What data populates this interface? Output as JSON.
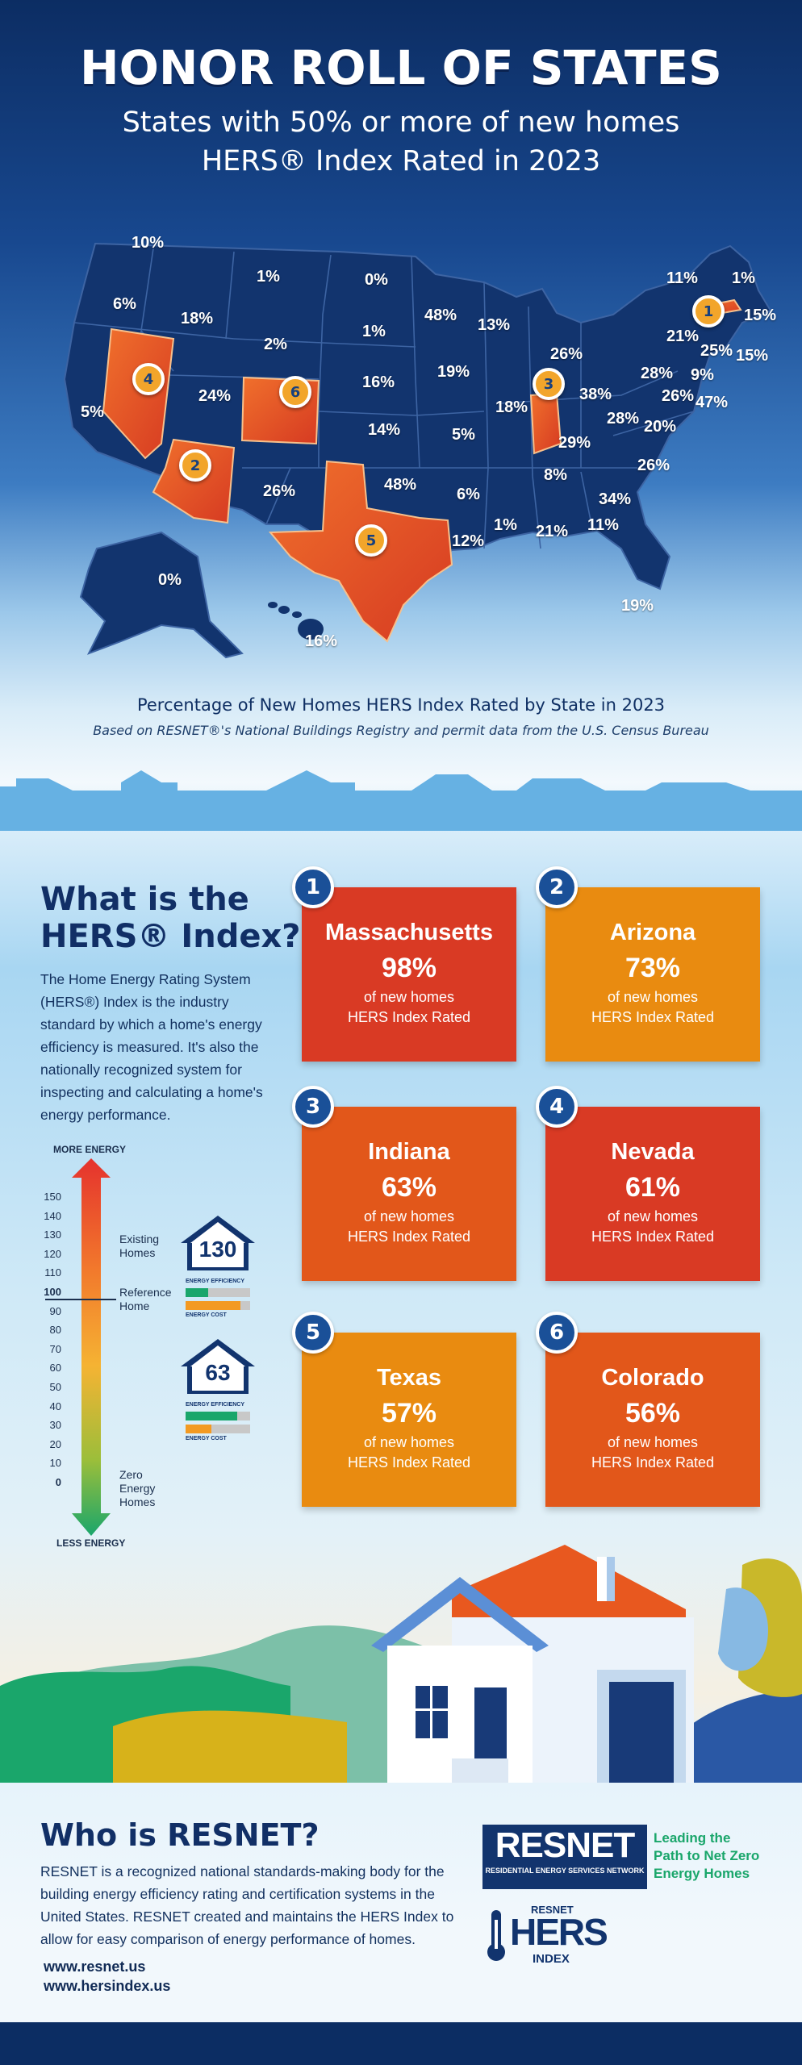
{
  "header": {
    "title": "HONOR ROLL OF STATES",
    "subtitle_line1": "States with 50% or more of new homes",
    "subtitle_line2": "HERS® Index Rated in 2023"
  },
  "map": {
    "caption": "Percentage of New Homes HERS Index Rated by State in 2023",
    "source": "Based on RESNET®'s National Buildings Registry and permit data from the U.S. Census Bureau",
    "labels": [
      "10%",
      "1%",
      "0%",
      "6%",
      "18%",
      "2%",
      "48%",
      "13%",
      "1%",
      "11%",
      "1%",
      "15%",
      "21%",
      "25%",
      "15%",
      "5%",
      "24%",
      "16%",
      "19%",
      "26%",
      "28%",
      "9%",
      "26%",
      "47%",
      "18%",
      "38%",
      "28%",
      "5%",
      "14%",
      "20%",
      "29%",
      "26%",
      "48%",
      "8%",
      "6%",
      "34%",
      "1%",
      "21%",
      "11%",
      "12%",
      "26%",
      "0%",
      "19%",
      "16%"
    ],
    "pins": [
      "1",
      "2",
      "3",
      "4",
      "5",
      "6"
    ]
  },
  "hers": {
    "title_line1": "What is the",
    "title_line2": "HERS® Index?",
    "description": "The Home Energy Rating System (HERS®) Index is the industry standard by which a home's energy efficiency is measured. It's also the nationally recognized system for inspecting and calculating a home's energy performance.",
    "scale": {
      "top_label": "MORE ENERGY",
      "bottom_label": "LESS ENERGY",
      "ticks": [
        "150",
        "140",
        "130",
        "120",
        "110",
        "100",
        "90",
        "80",
        "70",
        "60",
        "50",
        "40",
        "30",
        "20",
        "10",
        "0"
      ],
      "existing_homes": "Existing Homes",
      "reference_home": "Reference Home",
      "zero_energy": "Zero Energy Homes"
    },
    "house_examples": [
      {
        "score": "130",
        "efficiency_label": "ENERGY EFFICIENCY",
        "cost_label": "ENERGY COST",
        "efficiency_level": 0.35,
        "cost_level": 0.85
      },
      {
        "score": "63",
        "efficiency_label": "ENERGY EFFICIENCY",
        "cost_label": "ENERGY COST",
        "efficiency_level": 0.8,
        "cost_level": 0.4
      }
    ]
  },
  "rankings": [
    {
      "rank": "1",
      "state": "Massachusetts",
      "percent": "98%",
      "desc1": "of new homes",
      "desc2": "HERS Index Rated",
      "color": "#d93a24"
    },
    {
      "rank": "2",
      "state": "Arizona",
      "percent": "73%",
      "desc1": "of new homes",
      "desc2": "HERS Index Rated",
      "color": "#e98b10"
    },
    {
      "rank": "3",
      "state": "Indiana",
      "percent": "63%",
      "desc1": "of new homes",
      "desc2": "HERS Index Rated",
      "color": "#e2571a"
    },
    {
      "rank": "4",
      "state": "Nevada",
      "percent": "61%",
      "desc1": "of new homes",
      "desc2": "HERS Index Rated",
      "color": "#d93a24"
    },
    {
      "rank": "5",
      "state": "Texas",
      "percent": "57%",
      "desc1": "of new homes",
      "desc2": "HERS Index Rated",
      "color": "#e98b10"
    },
    {
      "rank": "6",
      "state": "Colorado",
      "percent": "56%",
      "desc1": "of new homes",
      "desc2": "HERS Index Rated",
      "color": "#e2571a"
    }
  ],
  "resnet": {
    "title": "Who is RESNET?",
    "description": "RESNET is a recognized national standards-making body for the building energy efficiency rating and certification systems in the United States. RESNET created and maintains the HERS Index to allow for easy comparison of energy performance of homes.",
    "links": [
      "www.resnet.us",
      "www.hersindex.us"
    ],
    "logo_name": "RESNET",
    "logo_sub": "RESIDENTIAL ENERGY SERVICES NETWORK",
    "tagline_line1": "Leading the",
    "tagline_line2": "Path to Net Zero",
    "tagline_line3": "Energy Homes",
    "hers_logo_small": "RESNET",
    "hers_logo_big": "HERS",
    "hers_logo_index": "INDEX"
  },
  "colors": {
    "navy": "#12346e",
    "orange": "#e8581f",
    "green": "#1aa66b"
  }
}
